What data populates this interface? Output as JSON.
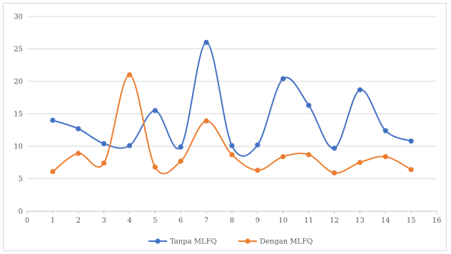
{
  "chart_data": {
    "type": "line",
    "smooth": true,
    "title": "",
    "xlabel": "",
    "ylabel": "",
    "xlim": [
      0,
      16
    ],
    "ylim": [
      0,
      30
    ],
    "x_ticks": [
      0,
      1,
      2,
      3,
      4,
      5,
      6,
      7,
      8,
      9,
      10,
      11,
      12,
      13,
      14,
      15,
      16
    ],
    "y_ticks": [
      0,
      5,
      10,
      15,
      20,
      25,
      30
    ],
    "grid": "horizontal",
    "legend_position": "bottom-center",
    "x": [
      1,
      2,
      3,
      4,
      5,
      6,
      7,
      8,
      9,
      10,
      11,
      12,
      13,
      14,
      15
    ],
    "series": [
      {
        "name": "Tanpa MLFQ",
        "color": "#4472c4",
        "values": [
          14,
          12.7,
          10.4,
          10.1,
          15.5,
          9.9,
          26,
          10.1,
          10.2,
          20.4,
          16.3,
          9.7,
          18.7,
          12.4,
          10.8
        ]
      },
      {
        "name": "Dengan MLFQ",
        "color": "#ed7d31",
        "values": [
          6.1,
          8.9,
          7.4,
          21,
          6.8,
          7.7,
          13.9,
          8.7,
          6.3,
          8.4,
          8.7,
          5.9,
          7.5,
          8.4,
          6.4
        ]
      }
    ]
  }
}
